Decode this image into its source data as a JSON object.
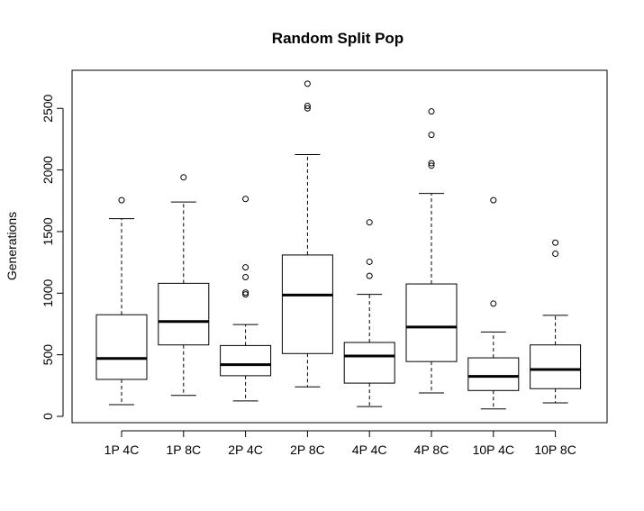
{
  "chart_data": {
    "type": "boxplot",
    "title": "Random Split Pop",
    "xlabel": "",
    "ylabel": "Generations",
    "ylim": [
      0,
      2750
    ],
    "yticks": [
      0,
      500,
      1000,
      1500,
      2000,
      2500
    ],
    "categories": [
      "1P 4C",
      "1P 8C",
      "2P 4C",
      "2P 8C",
      "4P 4C",
      "4P 8C",
      "10P 4C",
      "10P 8C"
    ],
    "boxes": [
      {
        "label": "1P 4C",
        "whisker_low": 95,
        "q1": 300,
        "median": 470,
        "q3": 825,
        "whisker_high": 1605,
        "outliers": [
          1755
        ]
      },
      {
        "label": "1P 8C",
        "whisker_low": 170,
        "q1": 580,
        "median": 770,
        "q3": 1080,
        "whisker_high": 1740,
        "outliers": [
          1940
        ]
      },
      {
        "label": "2P 4C",
        "whisker_low": 125,
        "q1": 330,
        "median": 420,
        "q3": 575,
        "whisker_high": 745,
        "outliers": [
          990,
          1005,
          1130,
          1210,
          1765
        ]
      },
      {
        "label": "2P 8C",
        "whisker_low": 240,
        "q1": 510,
        "median": 985,
        "q3": 1310,
        "whisker_high": 2125,
        "outliers": [
          2500,
          2520,
          2700
        ]
      },
      {
        "label": "4P 4C",
        "whisker_low": 80,
        "q1": 270,
        "median": 490,
        "q3": 600,
        "whisker_high": 990,
        "outliers": [
          1140,
          1255,
          1575
        ]
      },
      {
        "label": "4P 8C",
        "whisker_low": 190,
        "q1": 445,
        "median": 725,
        "q3": 1075,
        "whisker_high": 1810,
        "outliers": [
          2035,
          2055,
          2285,
          2475
        ]
      },
      {
        "label": "10P 4C",
        "whisker_low": 60,
        "q1": 210,
        "median": 325,
        "q3": 475,
        "whisker_high": 685,
        "outliers": [
          915,
          1755
        ]
      },
      {
        "label": "10P 8C",
        "whisker_low": 110,
        "q1": 225,
        "median": 380,
        "q3": 580,
        "whisker_high": 820,
        "outliers": [
          1320,
          1410
        ]
      }
    ],
    "grid": false,
    "legend": "none"
  }
}
